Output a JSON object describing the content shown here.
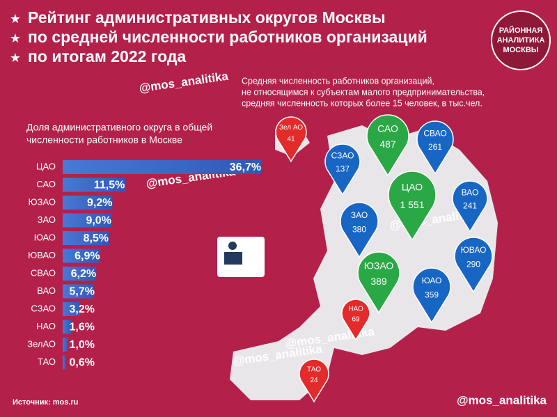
{
  "header": {
    "title_lines": [
      "Рейтинг административных округов Москвы",
      "по средней численности работников организаций",
      "по итогам 2022 года"
    ],
    "logo_lines": [
      "РАЙОННАЯ",
      "АНАЛИТИКА",
      "МОСКВЫ"
    ],
    "watermark": "@mos_analitika"
  },
  "chart_data": {
    "type": "bar",
    "orientation": "horizontal",
    "subtitle_lines": [
      "Доля административного округа в общей",
      "численности работников в Москве"
    ],
    "categories": [
      "ЦАО",
      "САО",
      "ЮЗАО",
      "ЗАО",
      "ЮАО",
      "ЮВАО",
      "СВАО",
      "ВАО",
      "СЗАО",
      "НАО",
      "ЗелАО",
      "ТАО"
    ],
    "values": [
      36.7,
      11.5,
      9.2,
      9.0,
      8.5,
      6.9,
      6.2,
      5.7,
      3.2,
      1.6,
      1.0,
      0.6
    ],
    "value_labels": [
      "36,7%",
      "11,5%",
      "9,2%",
      "9,0%",
      "8,5%",
      "6,9%",
      "6,2%",
      "5,7%",
      "3,2%",
      "1,6%",
      "1,0%",
      "0,6%"
    ],
    "color": "#4a78d6"
  },
  "map": {
    "description_lines": [
      "Средняя численность работников организаций,",
      "не относящимся к субъектам малого предпринимательства,",
      "средняя численность которых более 15 человек, в тыс.чел."
    ],
    "pins": [
      {
        "name": "Зел АО",
        "value": 41,
        "color": "#e32b2b"
      },
      {
        "name": "САО",
        "value": 487,
        "color": "#2aa845"
      },
      {
        "name": "СВАО",
        "value": 261,
        "color": "#1766c4"
      },
      {
        "name": "СЗАО",
        "value": 137,
        "color": "#1766c4"
      },
      {
        "name": "ЦАО",
        "value": {
          "value": 1551,
          "label": "1 551"
        },
        "color": "#2aa845"
      },
      {
        "name": "ВАО",
        "value": 241,
        "color": "#1766c4"
      },
      {
        "name": "ЗАО",
        "value": 380,
        "color": "#1766c4"
      },
      {
        "name": "ЮВАО",
        "value": 290,
        "color": "#1766c4"
      },
      {
        "name": "ЮЗАО",
        "value": 389,
        "color": "#2aa845"
      },
      {
        "name": "ЮАО",
        "value": 359,
        "color": "#1766c4"
      },
      {
        "name": "НАО",
        "value": 69,
        "color": "#e32b2b"
      },
      {
        "name": "ТАО",
        "value": 24,
        "color": "#e32b2b"
      }
    ]
  },
  "footer": {
    "source": "Источник: mos.ru",
    "handle": "@mos_analitika"
  }
}
